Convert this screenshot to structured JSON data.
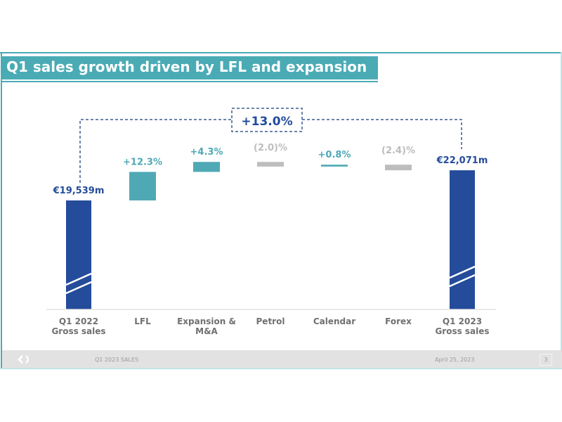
{
  "slide": {
    "title": "Q1 sales growth driven by LFL and expansion"
  },
  "footer": {
    "title": "Q1 2023 SALES",
    "date": "April 25, 2023",
    "page": "3",
    "logo": "Carrefour"
  },
  "chart_data": {
    "type": "bar",
    "subtype": "waterfall",
    "categories": [
      [
        "Q1 2022",
        "Gross sales"
      ],
      [
        "LFL",
        ""
      ],
      [
        "Expansion &",
        "M&A"
      ],
      [
        "Petrol",
        ""
      ],
      [
        "Calendar",
        ""
      ],
      [
        "Forex",
        ""
      ],
      [
        "Q1 2023",
        "Gross sales"
      ]
    ],
    "values": [
      19539,
      12.3,
      4.3,
      -2.0,
      0.8,
      -2.4,
      22071
    ],
    "units": [
      "€m",
      "%",
      "%",
      "%",
      "%",
      "%",
      "€m"
    ],
    "data_labels": [
      "€19,539m",
      "+12.3%",
      "+4.3%",
      "(2.0)%",
      "+0.8%",
      "(2.4)%",
      "€22,071m"
    ],
    "total_change_label": "+13.0%",
    "axis_break": true,
    "colors": {
      "total": "#244c9a",
      "positive": "#4fa9b5",
      "negative": "#bdbdbd",
      "category_text": "#707070"
    }
  }
}
